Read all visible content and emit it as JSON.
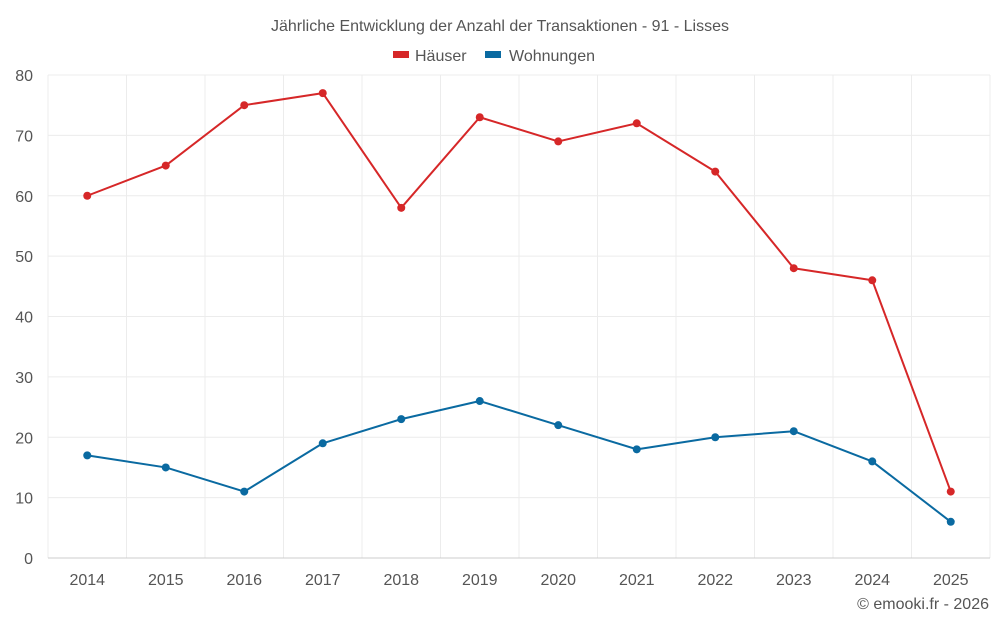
{
  "chart_data": {
    "type": "line",
    "title": "Jährliche Entwicklung der Anzahl der Transaktionen - 91 - Lisses",
    "categories": [
      "2014",
      "2015",
      "2016",
      "2017",
      "2018",
      "2019",
      "2020",
      "2021",
      "2022",
      "2023",
      "2024",
      "2025"
    ],
    "series": [
      {
        "name": "Häuser",
        "color": "#d62728",
        "values": [
          60,
          65,
          75,
          77,
          58,
          73,
          69,
          72,
          64,
          48,
          46,
          11
        ]
      },
      {
        "name": "Wohnungen",
        "color": "#0a6aa1",
        "values": [
          17,
          15,
          11,
          19,
          23,
          26,
          22,
          18,
          20,
          21,
          16,
          6
        ]
      }
    ],
    "ylim": [
      0,
      80
    ],
    "yticks": [
      0,
      10,
      20,
      30,
      40,
      50,
      60,
      70,
      80
    ],
    "xlabel": "",
    "ylabel": "",
    "grid": true,
    "legend": "top-center"
  },
  "credit": "© emooki.fr - 2026"
}
